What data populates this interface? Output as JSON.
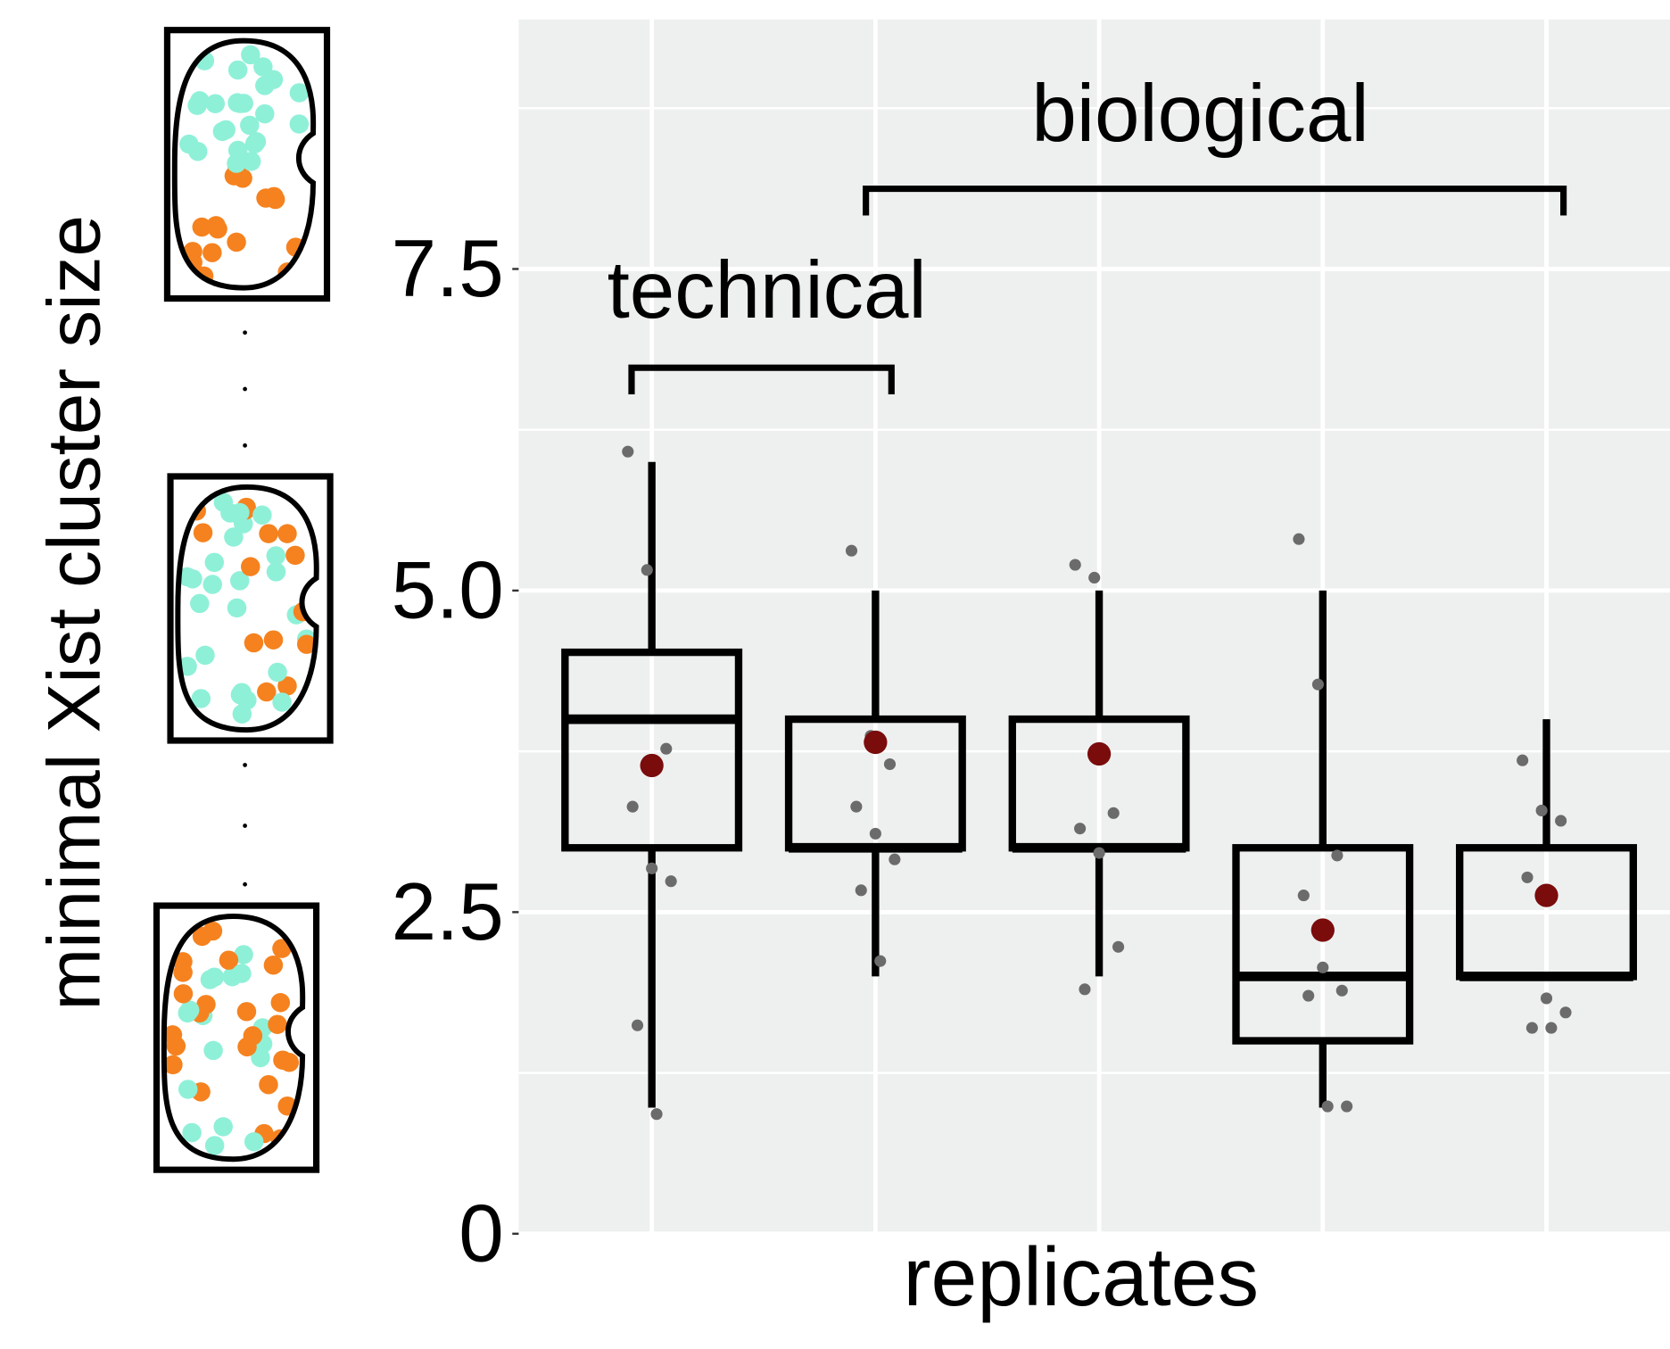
{
  "chart_data": {
    "type": "box",
    "y_label": "minimal Xist cluster size",
    "x_label": "replicates",
    "annotations": [
      "technical",
      "biological"
    ],
    "categories": [
      null,
      null,
      null,
      null,
      null
    ],
    "boxes": [
      {
        "whisker_low": 0.98,
        "q1": 3.0,
        "median": 4.0,
        "q3": 4.52,
        "whisker_high": 6.0,
        "mean": 3.64,
        "points": [
          6.08,
          5.16,
          3.77,
          3.32,
          2.84,
          2.74,
          1.62,
          0.93
        ]
      },
      {
        "whisker_low": 2.0,
        "q1": 3.0,
        "median": 3.0,
        "q3": 4.0,
        "whisker_high": 5.0,
        "mean": 3.82,
        "points": [
          5.31,
          3.87,
          3.65,
          3.32,
          3.11,
          2.91,
          2.67,
          2.12
        ]
      },
      {
        "whisker_low": 2.0,
        "q1": 3.0,
        "median": 3.0,
        "q3": 4.0,
        "whisker_high": 5.0,
        "mean": 3.73,
        "points": [
          5.2,
          5.1,
          3.27,
          3.15,
          2.96,
          2.23,
          1.9
        ]
      },
      {
        "whisker_low": 0.98,
        "q1": 1.5,
        "median": 2.0,
        "q3": 3.0,
        "whisker_high": 5.0,
        "mean": 2.36,
        "points": [
          5.4,
          4.27,
          2.94,
          2.63,
          2.07,
          1.89,
          1.85,
          0.99,
          0.99
        ]
      },
      {
        "whisker_low": 2.0,
        "q1": 2.0,
        "median": 2.0,
        "q3": 3.0,
        "whisker_high": 4.0,
        "mean": 2.63,
        "points": [
          3.68,
          3.29,
          3.21,
          2.77,
          1.83,
          1.72,
          1.6,
          1.6
        ]
      }
    ],
    "box_color": "#000000",
    "mean_color": "#7a0c0c",
    "point_color": "#6b6b6b",
    "panel_color": "#eef0f0",
    "grid": true,
    "ylim": [
      0,
      9.44
    ],
    "yticks": [
      0,
      2.5,
      {
        "value": 5,
        "label": "5.0"
      },
      7.5
    ],
    "minor_yticks": [
      1.25,
      3.75,
      6.25,
      8.75
    ]
  }
}
